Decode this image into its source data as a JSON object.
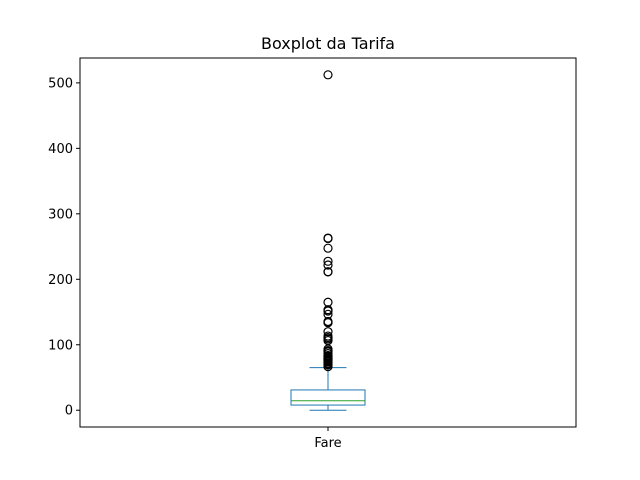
{
  "chart_data": {
    "type": "boxplot",
    "title": "Boxplot da Tarifa",
    "xlabel": "",
    "ylabel": "",
    "categories": [
      "Fare"
    ],
    "ylim": [
      -25.6,
      538.0
    ],
    "yticks": [
      0,
      100,
      200,
      300,
      400,
      500
    ],
    "grid": false,
    "box": {
      "whisker_low": 0,
      "q1": 7.9,
      "median": 14.5,
      "q3": 31.0,
      "whisker_high": 65.0
    },
    "outliers": [
      66.6,
      69.3,
      69.5,
      71.0,
      71.3,
      73.5,
      75.3,
      76.3,
      76.7,
      77.3,
      78.3,
      78.9,
      79.2,
      79.7,
      80.0,
      81.9,
      82.2,
      83.2,
      83.5,
      86.5,
      89.1,
      90.0,
      91.1,
      93.5,
      106.4,
      108.9,
      110.9,
      113.3,
      120.0,
      133.7,
      134.5,
      135.6,
      146.5,
      151.6,
      153.5,
      164.9,
      211.3,
      211.5,
      221.8,
      227.5,
      247.5,
      262.4,
      263.0,
      512.3
    ],
    "colors": {
      "box": "#1f77b4",
      "median": "#2ca02c",
      "outlier": "#000000"
    }
  }
}
